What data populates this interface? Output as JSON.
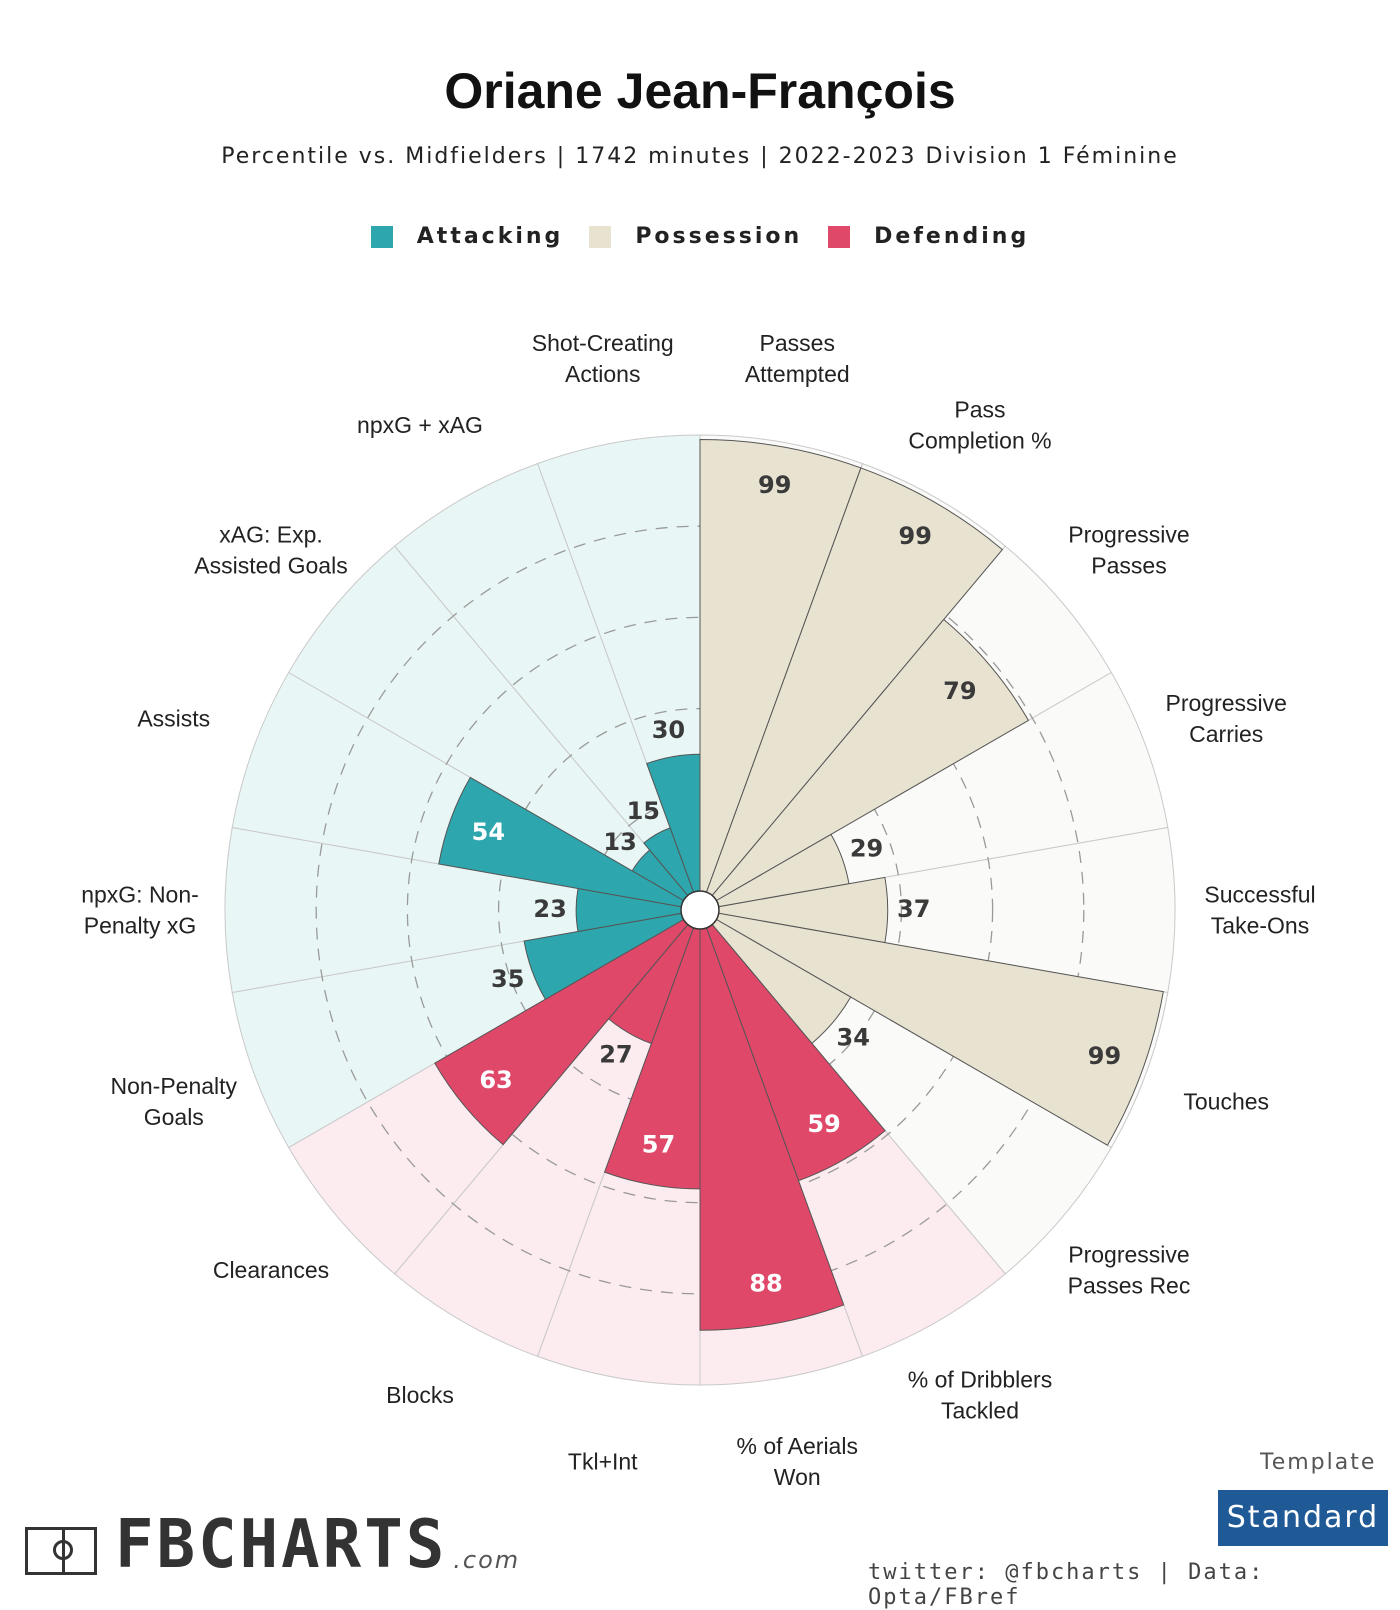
{
  "title": "Oriane Jean-François",
  "subtitle": "Percentile vs. Midfielders  |  1742 minutes  |  2022-2023 Division 1 Féminine",
  "legend": [
    {
      "label": "Attacking",
      "color": "#2ea6ad"
    },
    {
      "label": "Possession",
      "color": "#e8e2d1"
    },
    {
      "label": "Defending",
      "color": "#e0486a"
    }
  ],
  "chart_data": {
    "type": "radar-bar",
    "scale": [
      0,
      100
    ],
    "grid": "dashed rings at 20, 40, 60, 80",
    "categories": [
      {
        "label": "Shot-Creating\nActions",
        "value": 30,
        "group": "Attacking"
      },
      {
        "label": "Passes\nAttempted",
        "value": 99,
        "group": "Possession"
      },
      {
        "label": "Pass\nCompletion %",
        "value": 99,
        "group": "Possession"
      },
      {
        "label": "Progressive\nPasses",
        "value": 79,
        "group": "Possession"
      },
      {
        "label": "Progressive\nCarries",
        "value": 29,
        "group": "Possession"
      },
      {
        "label": "Successful\nTake-Ons",
        "value": 37,
        "group": "Possession"
      },
      {
        "label": "Touches",
        "value": 99,
        "group": "Possession"
      },
      {
        "label": "Progressive\nPasses Rec",
        "value": 34,
        "group": "Possession"
      },
      {
        "label": "% of Dribblers\nTackled",
        "value": 59,
        "group": "Defending"
      },
      {
        "label": "% of Aerials\nWon",
        "value": 88,
        "group": "Defending"
      },
      {
        "label": "Tkl+Int",
        "value": 57,
        "group": "Defending"
      },
      {
        "label": "Blocks",
        "value": 27,
        "group": "Defending"
      },
      {
        "label": "Clearances",
        "value": 63,
        "group": "Defending"
      },
      {
        "label": "Non-Penalty\nGoals",
        "value": 35,
        "group": "Attacking"
      },
      {
        "label": "npxG: Non-\nPenalty xG",
        "value": 23,
        "group": "Attacking"
      },
      {
        "label": "Assists",
        "value": 54,
        "group": "Attacking"
      },
      {
        "label": "xAG: Exp.\nAssisted Goals",
        "value": 13,
        "group": "Attacking"
      },
      {
        "label": "npxG + xAG",
        "value": 15,
        "group": "Attacking"
      }
    ],
    "group_colors": {
      "Attacking": {
        "fill": "#2ea6ad",
        "bg": "#e9f6f6"
      },
      "Possession": {
        "fill": "#e8e2d1",
        "bg": "#fafaf8"
      },
      "Defending": {
        "fill": "#e0486a",
        "bg": "#fcebef"
      }
    }
  },
  "footer": {
    "template_label": "Template",
    "template_value": "Standard",
    "credit": "twitter: @fbcharts | Data: Opta/FBref",
    "brand_name": "FBCHARTS",
    "brand_suffix": ".com"
  }
}
